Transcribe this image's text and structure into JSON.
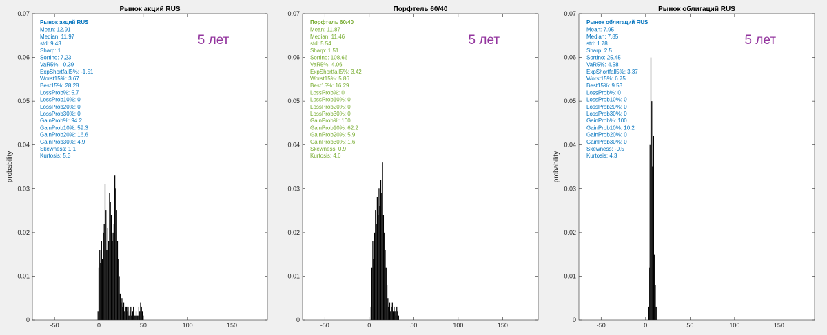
{
  "window": {
    "background": "#f0f0f0"
  },
  "colors": {
    "bar": "#000000",
    "axis": "#262626",
    "axes_bg": "#ffffff",
    "overlay": "#93359e",
    "stocks_stats": "#0072bd",
    "portfolio_stats": "#77ac30",
    "bonds_stats": "#0072bd"
  },
  "chart_data": [
    {
      "type": "bar",
      "title": "Рынок акций RUS",
      "xlabel": "",
      "ylabel": "probability",
      "xlim": [
        -75,
        190
      ],
      "ylim": [
        0,
        0.07
      ],
      "x_ticks": [
        "-50",
        "0",
        "50",
        "100",
        "150"
      ],
      "x_tick_values": [
        -50,
        0,
        50,
        100,
        150
      ],
      "y_ticks": [
        "0",
        "0.01",
        "0.02",
        "0.03",
        "0.04",
        "0.05",
        "0.06",
        "0.07"
      ],
      "y_tick_values": [
        0,
        0.01,
        0.02,
        0.03,
        0.04,
        0.05,
        0.06,
        0.07
      ],
      "overlay_label": "5 лет",
      "stats_color": "#0072bd",
      "stats_title": "Рынок акций RUS",
      "stats": [
        "Mean: 12.91",
        "Median: 11.97",
        "std: 9.43",
        "Sharp: 1",
        "Sortino: 7.23",
        "VaR5%: -0.39",
        "ExpShortfall5%: -1.51",
        "Worst15%: 3.67",
        "Best15%: 28.28",
        "LossProb%: 5.7",
        "LossProb10%: 0",
        "LossProb20%: 0",
        "LossProb30%: 0",
        "GainProb%: 94.2",
        "GainProb10%: 59.3",
        "GainProb20%: 16.6",
        "GainProb30%: 4.9",
        "Skewness: 1.1",
        "Kurtosis: 5.3"
      ],
      "bars": {
        "x": [
          -1,
          0,
          1,
          2,
          3,
          4,
          5,
          6,
          7,
          8,
          9,
          10,
          11,
          12,
          13,
          14,
          15,
          16,
          17,
          18,
          19,
          20,
          21,
          22,
          23,
          24,
          25,
          26,
          27,
          28,
          29,
          30,
          31,
          32,
          33,
          34,
          35,
          36,
          37,
          38,
          39,
          40,
          41,
          42,
          43,
          44,
          45,
          46,
          47,
          48,
          49,
          50
        ],
        "values": [
          0.002,
          0.012,
          0.016,
          0.013,
          0.018,
          0.014,
          0.02,
          0.022,
          0.031,
          0.025,
          0.016,
          0.021,
          0.018,
          0.029,
          0.027,
          0.024,
          0.018,
          0.02,
          0.022,
          0.033,
          0.03,
          0.025,
          0.018,
          0.014,
          0.01,
          0.006,
          0.004,
          0.005,
          0.003,
          0.004,
          0.002,
          0.003,
          0.003,
          0.002,
          0.003,
          0.001,
          0.002,
          0.003,
          0.001,
          0.002,
          0.003,
          0.001,
          0.001,
          0.002,
          0.001,
          0.001,
          0.003,
          0.002,
          0.004,
          0.003,
          0.002,
          0.001
        ]
      }
    },
    {
      "type": "bar",
      "title": "Порфтель 60/40",
      "xlabel": "",
      "ylabel": "",
      "xlim": [
        -75,
        190
      ],
      "ylim": [
        0,
        0.07
      ],
      "x_ticks": [
        "-50",
        "0",
        "50",
        "100",
        "150"
      ],
      "x_tick_values": [
        -50,
        0,
        50,
        100,
        150
      ],
      "y_ticks": [
        "0",
        "0.01",
        "0.02",
        "0.03",
        "0.04",
        "0.05",
        "0.06",
        "0.07"
      ],
      "y_tick_values": [
        0,
        0.01,
        0.02,
        0.03,
        0.04,
        0.05,
        0.06,
        0.07
      ],
      "overlay_label": "5 лет",
      "stats_color": "#77ac30",
      "stats_title": "Порфтель 60/40",
      "stats": [
        "Mean: 11.87",
        "Median: 11.46",
        "std: 5.54",
        "Sharp: 1.51",
        "Sortino: 108.66",
        "VaR5%: 4.06",
        "ExpShortfall5%: 3.42",
        "Worst15%: 5.86",
        "Best15%: 16.29",
        "LossProb%: 0",
        "LossProb10%: 0",
        "LossProb20%: 0",
        "LossProb30%: 0",
        "GainProb%: 100",
        "GainProb10%: 62.2",
        "GainProb20%: 5.9",
        "GainProb30%: 1.6",
        "Skewness: 0.9",
        "Kurtosis: 4.6"
      ],
      "bars": {
        "x": [
          2,
          3,
          4,
          5,
          6,
          7,
          8,
          9,
          10,
          11,
          12,
          13,
          14,
          15,
          16,
          17,
          18,
          19,
          20,
          21,
          22,
          23,
          24,
          25,
          26,
          27,
          28,
          29,
          30,
          31,
          32,
          33
        ],
        "values": [
          0.003,
          0.012,
          0.018,
          0.014,
          0.02,
          0.025,
          0.022,
          0.028,
          0.024,
          0.03,
          0.026,
          0.032,
          0.029,
          0.036,
          0.024,
          0.02,
          0.016,
          0.012,
          0.008,
          0.005,
          0.003,
          0.004,
          0.002,
          0.003,
          0.004,
          0.002,
          0.003,
          0.002,
          0.001,
          0.003,
          0.002,
          0.001
        ]
      }
    },
    {
      "type": "bar",
      "title": "Рынок облигаций RUS",
      "xlabel": "",
      "ylabel": "probability",
      "xlim": [
        -75,
        190
      ],
      "ylim": [
        0,
        0.07
      ],
      "x_ticks": [
        "-50",
        "0",
        "50",
        "100",
        "150"
      ],
      "x_tick_values": [
        -50,
        0,
        50,
        100,
        150
      ],
      "y_ticks": [
        "0",
        "0.01",
        "0.02",
        "0.03",
        "0.04",
        "0.05",
        "0.06",
        "0.07"
      ],
      "y_tick_values": [
        0,
        0.01,
        0.02,
        0.03,
        0.04,
        0.05,
        0.06,
        0.07
      ],
      "overlay_label": "5 лет",
      "stats_color": "#0072bd",
      "stats_title": "Рынок облигаций RUS",
      "stats": [
        "Mean: 7.95",
        "Median: 7.85",
        "std: 1.78",
        "Sharp: 2.5",
        "Sortino: 25.45",
        "VaR5%: 4.58",
        "ExpShortfall5%: 3.37",
        "Worst15%: 6.75",
        "Best15%: 9.53",
        "LossProb%: 0",
        "LossProb10%: 0",
        "LossProb20%: 0",
        "LossProb30%: 0",
        "GainProb%: 100",
        "GainProb10%: 10.2",
        "GainProb20%: 0",
        "GainProb30%: 0",
        "Skewness: -0.5",
        "Kurtosis: 4.3"
      ],
      "bars": {
        "x": [
          3,
          4,
          5,
          6,
          7,
          8,
          9,
          10,
          11,
          12
        ],
        "values": [
          0.003,
          0.012,
          0.04,
          0.06,
          0.05,
          0.035,
          0.042,
          0.015,
          0.008,
          0.003
        ]
      }
    }
  ]
}
